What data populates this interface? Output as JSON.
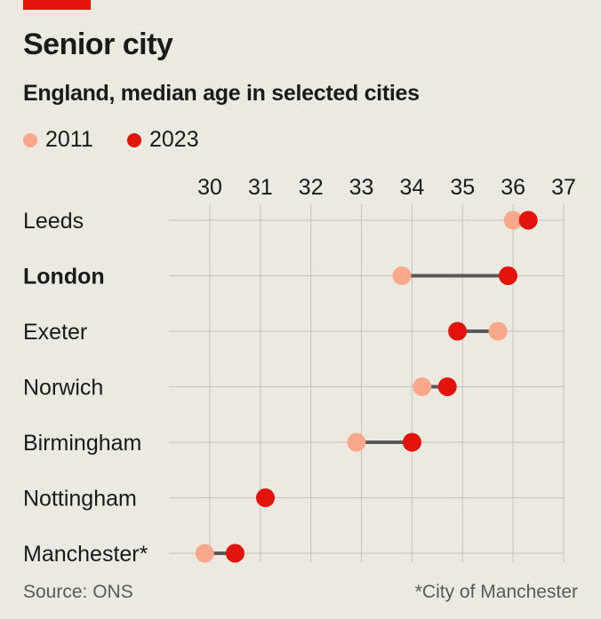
{
  "header": {
    "title": "Senior city",
    "subtitle": "England, median age in selected cities"
  },
  "legend": [
    {
      "label": "2011",
      "color": "#f9a88b"
    },
    {
      "label": "2023",
      "color": "#e3120b"
    }
  ],
  "colors": {
    "accent": "#e3120b",
    "background": "#ebe9e0",
    "grid": "#c6c3bb",
    "connector": "#595959"
  },
  "footer": {
    "source": "Source: ONS",
    "note": "*City of Manchester"
  },
  "chart_data": {
    "type": "dot-plot",
    "title": "Senior city",
    "subtitle": "England, median age in selected cities",
    "xlabel": "",
    "ylabel": "",
    "xlim": [
      30,
      37
    ],
    "x_ticks": [
      30,
      31,
      32,
      33,
      34,
      35,
      36,
      37
    ],
    "x_axis_position": "top",
    "grid": true,
    "legend_position": "top-left",
    "categories": [
      "Leeds",
      "London",
      "Exeter",
      "Norwich",
      "Birmingham",
      "Nottingham",
      "Manchester*"
    ],
    "highlighted_category": "London",
    "series": [
      {
        "name": "2011",
        "color": "#f9a88b",
        "values": [
          36.0,
          33.8,
          35.7,
          34.2,
          32.9,
          31.1,
          29.9
        ]
      },
      {
        "name": "2023",
        "color": "#e3120b",
        "values": [
          36.3,
          35.9,
          34.9,
          34.7,
          34.0,
          31.1,
          30.5
        ]
      }
    ]
  }
}
